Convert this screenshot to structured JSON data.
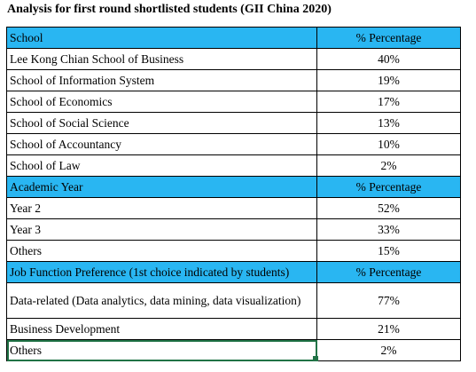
{
  "title": "Analysis for first round shortlisted students (GII China 2020)",
  "colors": {
    "header_fill": "#29b6f2",
    "selection_border": "#217346"
  },
  "table": {
    "sections": [
      {
        "header": "School",
        "value_header": "% Percentage",
        "rows": [
          {
            "label": "Lee Kong Chian School of Business",
            "value": "40%"
          },
          {
            "label": "School of Information System",
            "value": "19%"
          },
          {
            "label": "School of Economics",
            "value": "17%"
          },
          {
            "label": "School of Social Science",
            "value": "13%"
          },
          {
            "label": "School of Accountancy",
            "value": "10%"
          },
          {
            "label": "School of Law",
            "value": "2%"
          }
        ]
      },
      {
        "header": "Academic Year",
        "value_header": "% Percentage",
        "rows": [
          {
            "label": "Year 2",
            "value": "52%"
          },
          {
            "label": "Year 3",
            "value": "33%"
          },
          {
            "label": "Others",
            "value": "15%"
          }
        ]
      },
      {
        "header": "Job Function Preference (1st choice indicated by students)",
        "value_header": "% Percentage",
        "rows": [
          {
            "label": "Data-related (Data analytics, data mining, data visualization)",
            "value": "77%"
          },
          {
            "label": "Business Development",
            "value": "21%"
          },
          {
            "label": "Others",
            "value": "2%"
          }
        ]
      }
    ]
  }
}
